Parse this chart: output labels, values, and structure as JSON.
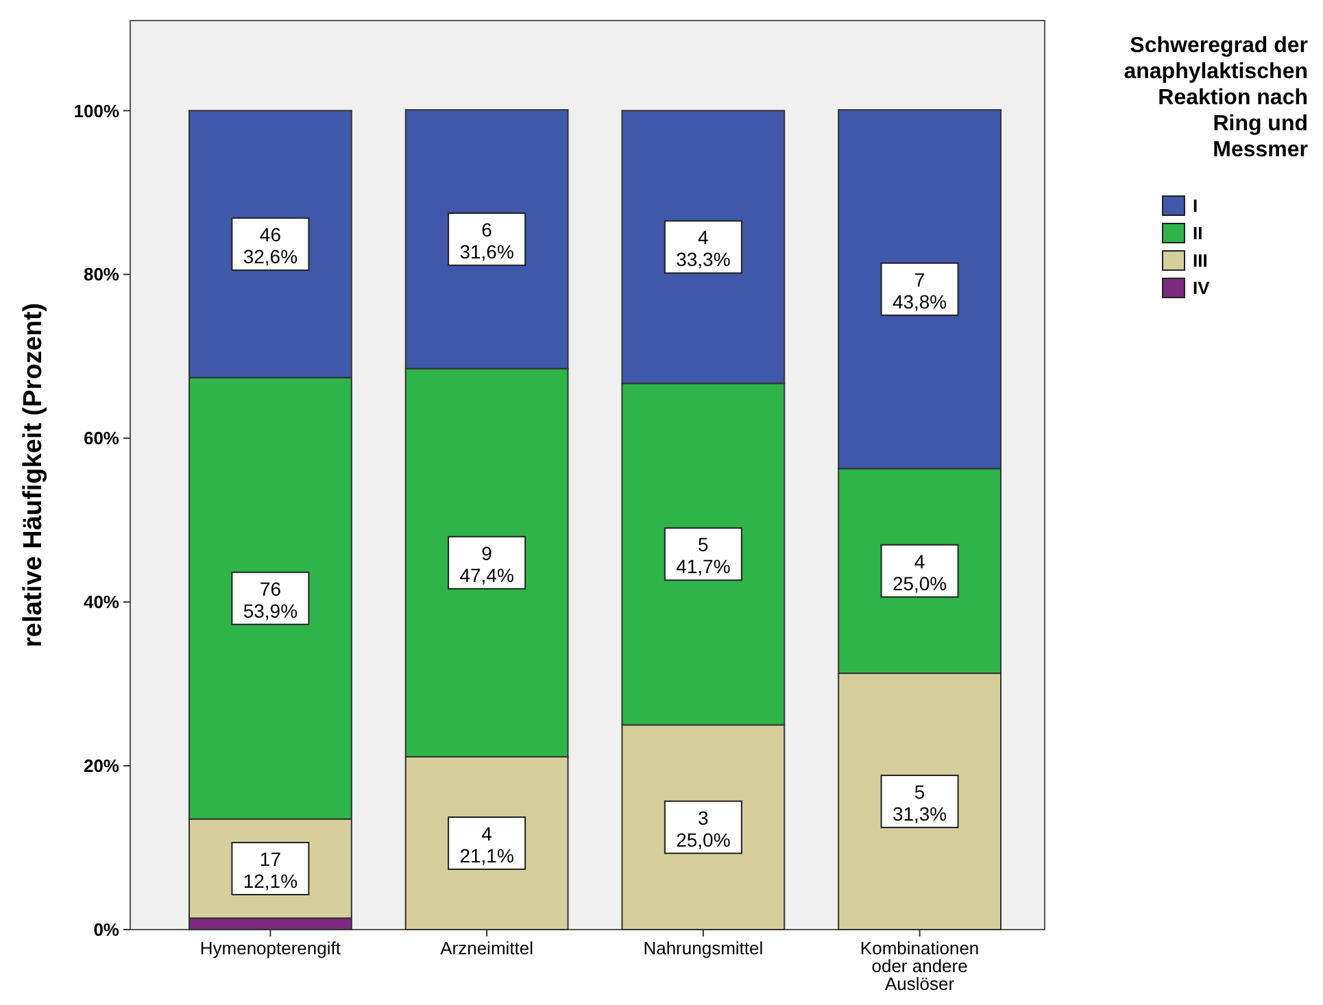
{
  "chart_data": {
    "type": "bar",
    "stacked": true,
    "ylabel": "relative Häufigkeit (Prozent)",
    "legend_title": "Schweregrad der anaphylaktischen Reaktion nach Ring und Messmer",
    "legend": "right",
    "grid": false,
    "categories": [
      "Hymenopterengift",
      "Arzneimittel",
      "Nahrungsmittel",
      "Kombinationen oder andere Auslöser"
    ],
    "ylim": [
      0,
      111
    ],
    "yticks": [
      {
        "value": 0,
        "label": "0%"
      },
      {
        "value": 20,
        "label": "20%"
      },
      {
        "value": 40,
        "label": "40%"
      },
      {
        "value": 60,
        "label": "60%"
      },
      {
        "value": 80,
        "label": "80%"
      },
      {
        "value": 100,
        "label": "100%"
      }
    ],
    "series": [
      {
        "name": "IV",
        "color": "#7b2a7e",
        "values": [
          1.4,
          0,
          0,
          0
        ],
        "value_labels": [
          null,
          null,
          null,
          null
        ]
      },
      {
        "name": "III",
        "color": "#d5cf9c",
        "values": [
          12.1,
          21.1,
          25.0,
          31.3
        ],
        "value_labels": [
          "17\n12,1%",
          "4\n21,1%",
          "3\n25,0%",
          "5\n31,3%"
        ]
      },
      {
        "name": "II",
        "color": "#2fb44a",
        "values": [
          53.9,
          47.4,
          41.7,
          25.0
        ],
        "value_labels": [
          "76\n53,9%",
          "9\n47,4%",
          "5\n41,7%",
          "4\n25,0%"
        ]
      },
      {
        "name": "I",
        "color": "#3f58a9",
        "values": [
          32.6,
          31.6,
          33.3,
          43.8
        ],
        "value_labels": [
          "46\n32,6%",
          "6\n31,6%",
          "4\n33,3%",
          "7\n43,8%"
        ]
      }
    ]
  }
}
